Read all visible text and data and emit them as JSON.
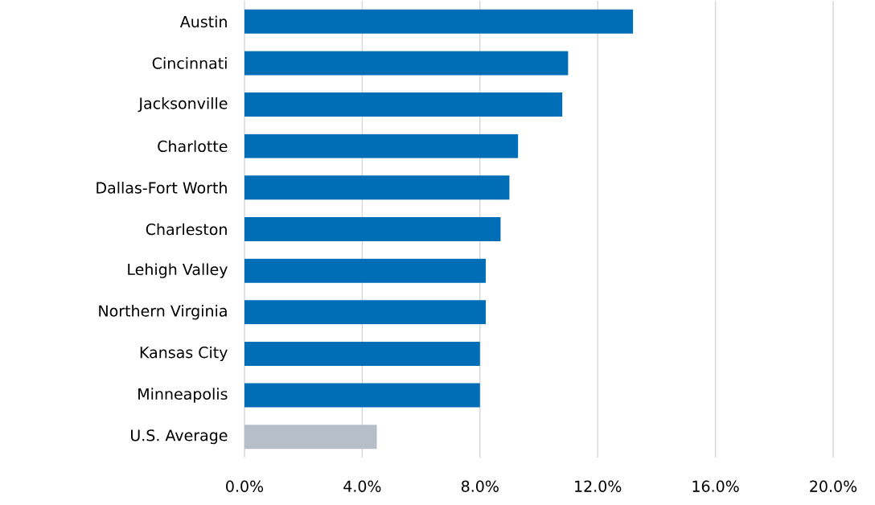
{
  "chart_data": {
    "type": "bar",
    "orientation": "horizontal",
    "categories": [
      "Austin",
      "Cincinnati",
      "Jacksonville",
      "Charlotte",
      "Dallas-Fort Worth",
      "Charleston",
      "Lehigh Valley",
      "Northern Virginia",
      "Kansas City",
      "Minneapolis",
      "U.S. Average"
    ],
    "values": [
      13.2,
      11.0,
      10.8,
      9.3,
      9.0,
      8.7,
      8.2,
      8.2,
      8.0,
      8.0,
      4.5
    ],
    "colors": [
      "#006eb6",
      "#006eb6",
      "#006eb6",
      "#006eb6",
      "#006eb6",
      "#006eb6",
      "#006eb6",
      "#006eb6",
      "#006eb6",
      "#006eb6",
      "#b6bfc8"
    ],
    "xlim": [
      0,
      20
    ],
    "xticks": [
      {
        "value": 0,
        "label": "0.0%"
      },
      {
        "value": 4,
        "label": "4.0%"
      },
      {
        "value": 8,
        "label": "8.0%"
      },
      {
        "value": 12,
        "label": "12.0%"
      },
      {
        "value": 16,
        "label": "16.0%"
      },
      {
        "value": 20,
        "label": "20.0%"
      }
    ],
    "grid": "x"
  }
}
